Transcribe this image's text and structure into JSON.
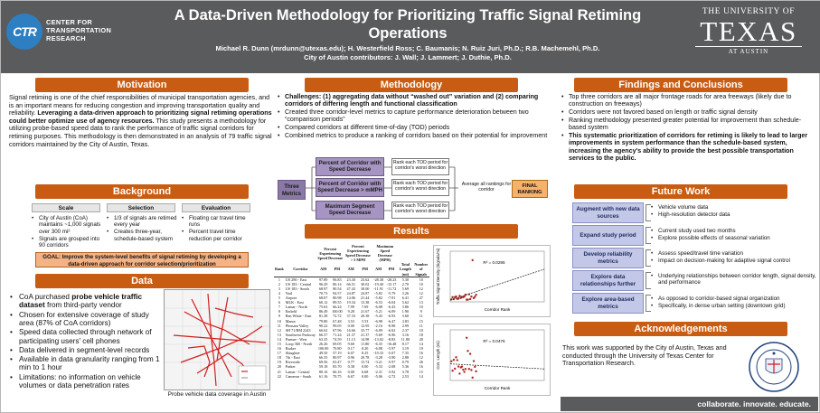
{
  "header": {
    "org_name": "CENTER FOR TRANSPORTATION RESEARCH",
    "org_abbr": "CTR",
    "title": "A Data-Driven Methodology for Prioritizing Traffic Signal Retiming Operations",
    "authors_line1": "Michael R. Dunn (mrdunn@utexas.edu); H. Westerfield Ross; C. Baumanis; N. Ruiz Juri, Ph.D.; R.B. Machemehl, Ph.D.",
    "authors_line2": "City of Austin contributors: J. Wall; J. Lammert; J. Duthie, Ph.D.",
    "univ_top": "THE UNIVERSITY OF",
    "univ_name": "TEXAS",
    "univ_bottom": "AT AUSTIN"
  },
  "motivation": {
    "heading": "Motivation",
    "text_plain1": "Signal retiming is one of the chief responsibilities of municipal transportation agencies, and is an important means for reducing congestion and improving transportation quality and reliability. ",
    "text_bold": "Leveraging a data-driven approach to prioritizing signal retiming operations could better optimize use of agency resources.",
    "text_plain2": " This study presents a methodology for utilizing probe-based speed data to rank the performance of traffic signal corridors for retiming purposes. This methodology is then demonstrated in an analysis of 79 traffic signal corridors maintained by the City of Austin, Texas."
  },
  "background": {
    "heading": "Background",
    "columns": [
      {
        "title": "Scale",
        "items": [
          "City of Austin (CoA) maintains ~1,000 signals over 300 mi²",
          "Signals are grouped into 90 corridors"
        ]
      },
      {
        "title": "Selection",
        "items": [
          "1/3 of signals are retimed every year",
          "Creates three-year, schedule-based system"
        ]
      },
      {
        "title": "Evaluation",
        "items": [
          "Floating car travel time runs",
          "Percent travel time reduction per corridor"
        ]
      }
    ],
    "goal": "GOAL: Improve the system-level benefits of signal retiming by developing a data-driven approach for corridor selection/prioritization"
  },
  "data_section": {
    "heading": "Data",
    "bullets": [
      {
        "pre": "CoA purchased ",
        "bold": "probe vehicle traffic dataset",
        "post": " from third-party vendor"
      },
      {
        "pre": "Chosen for extensive coverage of study area (87% of CoA corridors)",
        "bold": "",
        "post": ""
      },
      {
        "pre": "Speed data collected through network of participating users' cell phones",
        "bold": "",
        "post": ""
      },
      {
        "pre": "Data delivered in segment-level records",
        "bold": "",
        "post": ""
      },
      {
        "pre": "Available in data granularity ranging from 1 min to 1 hour",
        "bold": "",
        "post": ""
      },
      {
        "pre": "Limitations: no information on vehicle volumes or data penetration rates",
        "bold": "",
        "post": ""
      }
    ],
    "map_caption": "Probe vehicle data coverage in Austin"
  },
  "methodology": {
    "heading": "Methodology",
    "bullets": [
      {
        "text": "Challenges: (1) aggregating data without “washed out” variation and (2) comparing corridors of differing length and functional classification",
        "bold": true
      },
      {
        "text": "Created three corridor-level metrics to capture performance deterioration between two “comparison periods”",
        "bold": false
      },
      {
        "text": "Compared corridors at different time-of-day (TOD) periods",
        "bold": false
      },
      {
        "text": "Combined metrics to produce a ranking of corridors based on their potential for improvement",
        "bold": false
      }
    ],
    "flow": {
      "three_metrics": "Three Metrics",
      "metrics": [
        {
          "label": "Percent of Corridor with Speed Decrease",
          "note": "Rank each TOD period for corridor's worst direction"
        },
        {
          "label": "Percent of Corridor with Speed Decrease > mMPH",
          "note": "Rank each TOD period for corridor's worst direction"
        },
        {
          "label": "Maximum Segment Speed Decrease",
          "note": "Rank each TOD period for corridor's worst direction"
        }
      ],
      "average": "Average all rankings for corridor",
      "final": "FINAL RANKING"
    }
  },
  "results": {
    "heading": "Results",
    "group_headers": [
      "Percent Experiencing Speed Decrease",
      "Percent Experiencing Speed Decrease > 5 MPH",
      "Maximum Speed Decrease (MPH)"
    ],
    "columns": [
      "Rank",
      "Corridor",
      "AM",
      "PM",
      "AM",
      "PM",
      "AM",
      "PM",
      "Total Length (mi)",
      "Number of Signals"
    ],
    "rows": [
      [
        "1",
        "US 290 - East",
        "97.89",
        "96.83",
        "23.30",
        "23.62",
        "-28.38",
        "-28.23",
        "5.30",
        "10"
      ],
      [
        "2",
        "US 183 - Central",
        "96.29",
        "86.14",
        "66.51",
        "30.02",
        "-19.40",
        "-15.17",
        "2.70",
        "10"
      ],
      [
        "3",
        "US 183 - South",
        "68.97",
        "90.54",
        "47.43",
        "30.00",
        "-11.91",
        "-11.72",
        "5.69",
        "12"
      ],
      [
        "4",
        "Nail",
        "70.73",
        "94.57",
        "24.87",
        "24.87",
        "-5.82",
        "-5.79",
        "3.26",
        "12"
      ],
      [
        "5",
        "Airport",
        "68.07",
        "80.98",
        "14.06",
        "21.44",
        "-5.82",
        "-7.91",
        "6.41",
        "27"
      ],
      [
        "6",
        "MLK - East",
        "60.12",
        "89.55",
        "19.34",
        "13.38",
        "-6.53",
        "-6.04",
        "5.62",
        "13"
      ],
      [
        "7",
        "Lamar - North",
        "75.63",
        "66.24",
        "7.99",
        "7.69",
        "-6.08",
        "-6.43",
        "3.86",
        "10"
      ],
      [
        "8",
        "Enfield",
        "86.49",
        "100.00",
        "9.28",
        "21.67",
        "-5.21",
        "-6.09",
        "1.90",
        "9"
      ],
      [
        "9",
        "Ben White - East",
        "81.38",
        "72.72",
        "37.33",
        "20.38",
        "-5.43",
        "-6.93",
        "3.60",
        "11"
      ],
      [
        "10",
        "Manor",
        "79.80",
        "67.48",
        "3.53",
        "5.53",
        "-6.98",
        "-6.47",
        "3.83",
        "15"
      ],
      [
        "11",
        "Pleasant Valley",
        "90.22",
        "99.05",
        "0.00",
        "12.95",
        "-2.16",
        "-8.98",
        "2.99",
        "11"
      ],
      [
        "12",
        "SH 71/RM 2243",
        "66.62",
        "67.96",
        "16.66",
        "33.77",
        "-6.09",
        "-6.02",
        "2.37",
        "10"
      ],
      [
        "13",
        "Southwest Parkway",
        "66.57",
        "71.24",
        "21.37",
        "21.37",
        "-5.69",
        "-6.96",
        "3.16",
        "18"
      ],
      [
        "14",
        "Parmer - West",
        "63.35",
        "74.59",
        "11.13",
        "14.98",
        "-13.02",
        "-8.83",
        "11.80",
        "20"
      ],
      [
        "15",
        "Loop 360 - North",
        "26.26",
        "69.05",
        "9.60",
        "11.80",
        "-6.35",
        "-16.48",
        "8.17",
        "14"
      ],
      [
        "16",
        "Braker",
        "100.00",
        "70.80",
        "0.17",
        "8.20",
        "-6.08",
        "-5.97",
        "3.19",
        "19"
      ],
      [
        "17",
        "Slaughter",
        "49.50",
        "57.19",
        "6.07",
        "8.25",
        "-10.33",
        "-5.07",
        "7.35",
        "16"
      ],
      [
        "18",
        "7th - East",
        "66.35",
        "80.97",
        "0.96",
        "20.78",
        "-3.28",
        "-3.90",
        "2.88",
        "12"
      ],
      [
        "19",
        "Riverside",
        "69.56",
        "63.47",
        "0.77",
        "13.74",
        "-3.21",
        "-5.97",
        "0.79",
        "26"
      ],
      [
        "20",
        "Parker",
        "59.18",
        "83.70",
        "0.38",
        "0.00",
        "-5.33",
        "-2.08",
        "5.36",
        "16"
      ],
      [
        "21",
        "Lamar - Central",
        "80.16",
        "66.16",
        "0.00",
        "6.68",
        "-2.31",
        "-3.92",
        "3.78",
        "15"
      ],
      [
        "22",
        "Cameron - South",
        "61.16",
        "70.75",
        "6.67",
        "0.00",
        "-5.06",
        "-2.72",
        "2.53",
        "14"
      ]
    ],
    "plot1_ylabel": "Traffic Signal Density (Signals/mi)",
    "plot1_xlabel": "Corridor Rank",
    "plot1_r2": "R² = 0.0295",
    "plot2_ylabel": "Corr. Length (mi)",
    "plot2_xlabel": "Corridor Rank",
    "plot2_r2": "R² = 0.0476"
  },
  "findings": {
    "heading": "Findings and Conclusions",
    "bullets": [
      {
        "text": "Top three corridors are all major frontage roads for area freeways (likely due to construction on freeways)",
        "bold": false
      },
      {
        "text": "Corridors were not favored based on length or traffic signal density",
        "bold": false
      },
      {
        "text": "Ranking methodology presented greater potential for improvement than schedule-based system",
        "bold": false
      },
      {
        "text": "This systematic prioritization of corridors for retiming is likely to lead to larger improvements in system performance than the schedule-based system, increasing the agency's ability to provide the best possible transportation services to the public.",
        "bold": true
      }
    ]
  },
  "future_work": {
    "heading": "Future Work",
    "items": [
      {
        "label": "Augment with new data sources",
        "bullets": [
          "Vehicle volume data",
          "High-resolution detector data"
        ]
      },
      {
        "label": "Expand study period",
        "bullets": [
          "Current study used two months",
          "Explore possible effects of seasonal variation"
        ]
      },
      {
        "label": "Develop reliability metrics",
        "bullets": [
          "Assess speed/travel time variation",
          "Impact on decision-making for adaptive signal control"
        ]
      },
      {
        "label": "Explore data relationships further",
        "bullets": [
          "Underlying relationships between corridor length, signal density, and performance"
        ]
      },
      {
        "label": "Explore area-based metrics",
        "bullets": [
          "As opposed to corridor-based signal organization",
          "Specifically, in dense urban setting (downtown grid)"
        ]
      }
    ]
  },
  "acknowledgements": {
    "heading": "Acknowledgements",
    "text": "This work was supported by the City of Austin, Texas and conducted through the University of Texas Center for Transportation Research."
  },
  "footer": {
    "tagline": "collaborate. innovate. educate."
  },
  "colors": {
    "header_bg": "#5a5b5d",
    "section_orange": "#c85c12",
    "ctr_blue": "#2d7fc1",
    "flow_purple": "#8a79a6",
    "future_blue": "#c3c8e8",
    "goal_peach": "#f4b386"
  },
  "icons": {
    "ctr_logo": "ctr-logo-mark",
    "seal": "city-of-austin-seal"
  }
}
